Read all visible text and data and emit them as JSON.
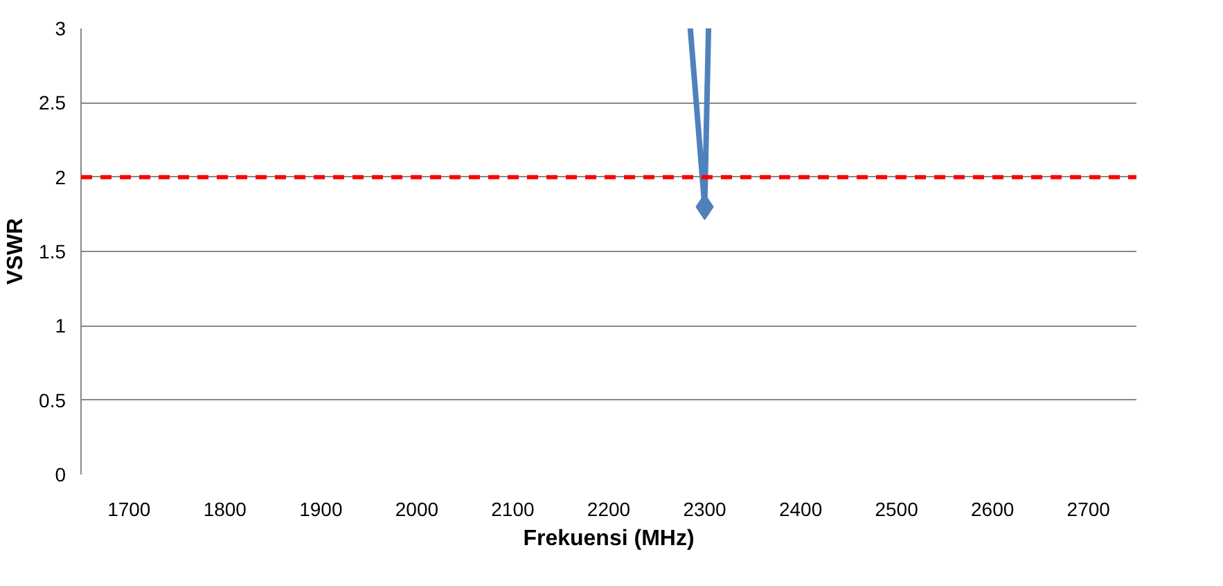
{
  "chart_data": {
    "type": "line",
    "xlabel": "Frekuensi (MHz)",
    "ylabel": "VSWR",
    "xlim": [
      1650,
      2750
    ],
    "xticks": [
      1700,
      1800,
      1900,
      2000,
      2100,
      2200,
      2300,
      2400,
      2500,
      2600,
      2700
    ],
    "ylim": [
      0,
      3
    ],
    "yticks": [
      0,
      0.5,
      1,
      1.5,
      2,
      2.5,
      3
    ],
    "grid": "y",
    "series": [
      {
        "color": "#4f81bd",
        "marker": "none",
        "x": [
          2285,
          2300,
          2304
        ],
        "values": [
          3,
          1.8,
          3
        ]
      },
      {
        "type": "scatter",
        "color": "#4f81bd",
        "marker": "diamond",
        "x": [
          2300
        ],
        "values": [
          1.8
        ]
      }
    ],
    "ref_lines": [
      {
        "axis": "y",
        "value": 2,
        "color": "#ff0000",
        "line_style": "dashed"
      }
    ]
  }
}
